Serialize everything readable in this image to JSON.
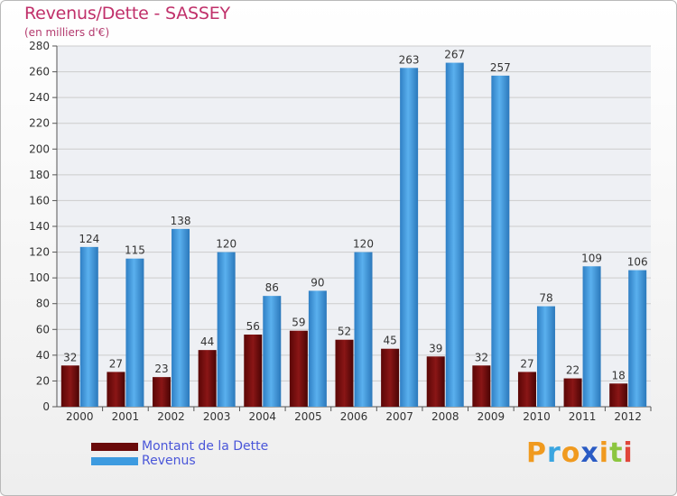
{
  "title": "Revenus/Dette - SASSEY",
  "subtitle": "(en milliers d'€)",
  "brand": {
    "text": "Proxiti",
    "letters": [
      {
        "ch": "P",
        "color": "#f09a1f"
      },
      {
        "ch": "r",
        "color": "#3aa5e0"
      },
      {
        "ch": "o",
        "color": "#f09a1f"
      },
      {
        "ch": "x",
        "color": "#2a5bc4"
      },
      {
        "ch": "i",
        "color": "#f09a1f"
      },
      {
        "ch": "t",
        "color": "#8cc63f"
      },
      {
        "ch": "i",
        "color": "#e0463a"
      }
    ]
  },
  "colors": {
    "dette": "#7a0c0c",
    "revenus": "#3d9be0",
    "axis_text": "#333333",
    "grid": "#cccccc"
  },
  "chart_data": {
    "type": "bar",
    "categories": [
      "2000",
      "2001",
      "2002",
      "2003",
      "2004",
      "2005",
      "2006",
      "2007",
      "2008",
      "2009",
      "2010",
      "2011",
      "2012"
    ],
    "series": [
      {
        "name": "Montant de la Dette",
        "values": [
          32,
          27,
          23,
          44,
          56,
          59,
          52,
          45,
          39,
          32,
          27,
          22,
          18
        ]
      },
      {
        "name": "Revenus",
        "values": [
          124,
          115,
          138,
          120,
          86,
          90,
          120,
          263,
          267,
          257,
          78,
          109,
          106
        ]
      }
    ],
    "ylim": [
      0,
      280
    ],
    "yticks": [
      0,
      20,
      40,
      60,
      80,
      100,
      120,
      140,
      160,
      180,
      200,
      220,
      240,
      260,
      280
    ],
    "grid": true,
    "legend": "bottom-left"
  }
}
